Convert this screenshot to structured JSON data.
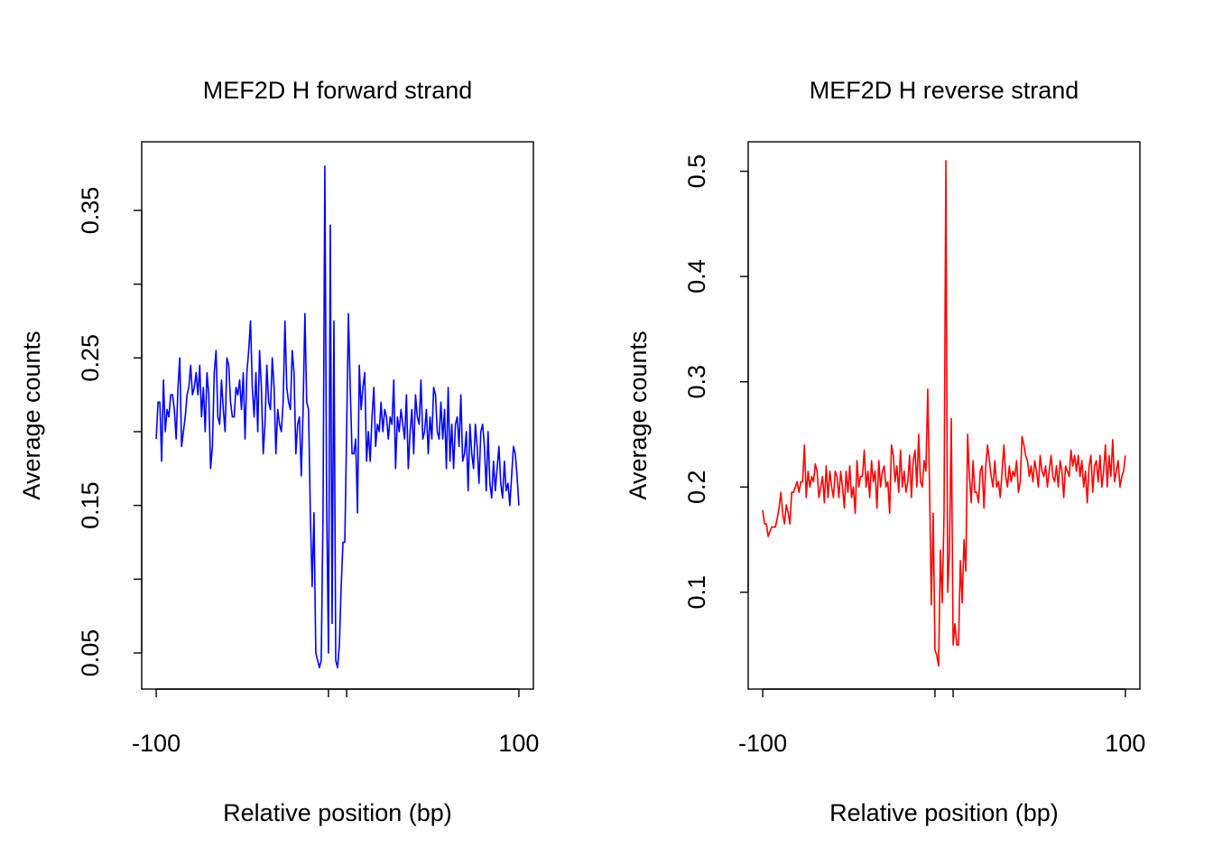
{
  "chart_data": [
    {
      "type": "line",
      "title": "MEF2D H forward strand",
      "xlabel": "Relative position (bp)",
      "ylabel": "Average counts",
      "color": "#0000ff",
      "x": [
        -100,
        -99,
        -98,
        -97,
        -96,
        -95,
        -94,
        -93,
        -92,
        -91,
        -90,
        -89,
        -88,
        -87,
        -86,
        -85,
        -84,
        -83,
        -82,
        -81,
        -80,
        -79,
        -78,
        -77,
        -76,
        -75,
        -74,
        -73,
        -72,
        -71,
        -70,
        -69,
        -68,
        -67,
        -66,
        -65,
        -64,
        -63,
        -62,
        -61,
        -60,
        -59,
        -58,
        -57,
        -56,
        -55,
        -54,
        -53,
        -52,
        -51,
        -50,
        -49,
        -48,
        -47,
        -46,
        -45,
        -44,
        -43,
        -42,
        -41,
        -40,
        -39,
        -38,
        -37,
        -36,
        -35,
        -34,
        -33,
        -32,
        -31,
        -30,
        -29,
        -28,
        -27,
        -26,
        -25,
        -24,
        -23,
        -22,
        -21,
        -20,
        -19,
        -18,
        -17,
        -16,
        -15,
        -14,
        -13,
        -12,
        -11,
        -10,
        -9,
        -8,
        -7,
        -6,
        -5,
        -4,
        -3,
        -2,
        -1,
        0,
        1,
        2,
        3,
        4,
        5,
        6,
        7,
        8,
        9,
        10,
        11,
        12,
        13,
        14,
        15,
        16,
        17,
        18,
        19,
        20,
        21,
        22,
        23,
        24,
        25,
        26,
        27,
        28,
        29,
        30,
        31,
        32,
        33,
        34,
        35,
        36,
        37,
        38,
        39,
        40,
        41,
        42,
        43,
        44,
        45,
        46,
        47,
        48,
        49,
        50,
        51,
        52,
        53,
        54,
        55,
        56,
        57,
        58,
        59,
        60,
        61,
        62,
        63,
        64,
        65,
        66,
        67,
        68,
        69,
        70,
        71,
        72,
        73,
        74,
        75,
        76,
        77,
        78,
        79,
        80,
        81,
        82,
        83,
        84,
        85,
        86,
        87,
        88,
        89,
        90,
        91,
        92,
        93,
        94,
        95,
        96,
        97,
        98,
        99,
        100
      ],
      "values": [
        0.195,
        0.22,
        0.22,
        0.18,
        0.235,
        0.2,
        0.215,
        0.21,
        0.225,
        0.225,
        0.215,
        0.195,
        0.23,
        0.25,
        0.19,
        0.2,
        0.21,
        0.225,
        0.23,
        0.245,
        0.225,
        0.23,
        0.24,
        0.225,
        0.245,
        0.21,
        0.23,
        0.2,
        0.24,
        0.225,
        0.175,
        0.19,
        0.24,
        0.255,
        0.21,
        0.205,
        0.235,
        0.215,
        0.2,
        0.25,
        0.245,
        0.22,
        0.21,
        0.21,
        0.23,
        0.225,
        0.235,
        0.215,
        0.24,
        0.195,
        0.24,
        0.255,
        0.275,
        0.23,
        0.21,
        0.24,
        0.2,
        0.255,
        0.23,
        0.185,
        0.205,
        0.245,
        0.22,
        0.215,
        0.25,
        0.23,
        0.185,
        0.215,
        0.205,
        0.2,
        0.22,
        0.275,
        0.23,
        0.22,
        0.215,
        0.255,
        0.24,
        0.185,
        0.205,
        0.21,
        0.17,
        0.215,
        0.28,
        0.22,
        0.215,
        0.145,
        0.095,
        0.145,
        0.05,
        0.045,
        0.04,
        0.045,
        0.145,
        0.38,
        0.15,
        0.05,
        0.34,
        0.07,
        0.275,
        0.045,
        0.04,
        0.055,
        0.095,
        0.125,
        0.125,
        0.2,
        0.28,
        0.23,
        0.185,
        0.185,
        0.195,
        0.145,
        0.245,
        0.215,
        0.23,
        0.24,
        0.18,
        0.2,
        0.18,
        0.21,
        0.23,
        0.19,
        0.205,
        0.2,
        0.22,
        0.2,
        0.215,
        0.21,
        0.195,
        0.21,
        0.205,
        0.235,
        0.175,
        0.21,
        0.2,
        0.215,
        0.205,
        0.195,
        0.225,
        0.175,
        0.2,
        0.215,
        0.185,
        0.225,
        0.21,
        0.205,
        0.235,
        0.195,
        0.2,
        0.215,
        0.185,
        0.21,
        0.195,
        0.23,
        0.225,
        0.2,
        0.195,
        0.22,
        0.195,
        0.215,
        0.175,
        0.23,
        0.18,
        0.205,
        0.175,
        0.205,
        0.21,
        0.19,
        0.225,
        0.18,
        0.185,
        0.2,
        0.16,
        0.205,
        0.185,
        0.175,
        0.205,
        0.19,
        0.165,
        0.2,
        0.205,
        0.19,
        0.16,
        0.2,
        0.165,
        0.155,
        0.18,
        0.16,
        0.175,
        0.19,
        0.165,
        0.155,
        0.18,
        0.16,
        0.165,
        0.15,
        0.17,
        0.19,
        0.185,
        0.17,
        0.15
      ],
      "xlim": [
        -108,
        108
      ],
      "xticks": [
        -100,
        {
          "value": -5,
          "label": null
        },
        {
          "value": 5,
          "label": null
        },
        100
      ],
      "ylim": [
        0.0255,
        0.3965
      ],
      "yticks": [
        0.05,
        {
          "value": 0.1,
          "label": null
        },
        0.15,
        {
          "value": 0.2,
          "label": null
        },
        0.25,
        {
          "value": 0.3,
          "label": null
        },
        0.35
      ]
    },
    {
      "type": "line",
      "title": "MEF2D H reverse strand",
      "xlabel": "Relative position (bp)",
      "ylabel": "Average counts",
      "color": "#ff0000",
      "x": [
        -100,
        -99,
        -98,
        -97,
        -96,
        -95,
        -94,
        -93,
        -92,
        -91,
        -90,
        -89,
        -88,
        -87,
        -86,
        -85,
        -84,
        -83,
        -82,
        -81,
        -80,
        -79,
        -78,
        -77,
        -76,
        -75,
        -74,
        -73,
        -72,
        -71,
        -70,
        -69,
        -68,
        -67,
        -66,
        -65,
        -64,
        -63,
        -62,
        -61,
        -60,
        -59,
        -58,
        -57,
        -56,
        -55,
        -54,
        -53,
        -52,
        -51,
        -50,
        -49,
        -48,
        -47,
        -46,
        -45,
        -44,
        -43,
        -42,
        -41,
        -40,
        -39,
        -38,
        -37,
        -36,
        -35,
        -34,
        -33,
        -32,
        -31,
        -30,
        -29,
        -28,
        -27,
        -26,
        -25,
        -24,
        -23,
        -22,
        -21,
        -20,
        -19,
        -18,
        -17,
        -16,
        -15,
        -14,
        -13,
        -12,
        -11,
        -10,
        -9,
        -8,
        -7,
        -6,
        -5,
        -4,
        -3,
        -2,
        -1,
        0,
        1,
        2,
        3,
        4,
        5,
        6,
        7,
        8,
        9,
        10,
        11,
        12,
        13,
        14,
        15,
        16,
        17,
        18,
        19,
        20,
        21,
        22,
        23,
        24,
        25,
        26,
        27,
        28,
        29,
        30,
        31,
        32,
        33,
        34,
        35,
        36,
        37,
        38,
        39,
        40,
        41,
        42,
        43,
        44,
        45,
        46,
        47,
        48,
        49,
        50,
        51,
        52,
        53,
        54,
        55,
        56,
        57,
        58,
        59,
        60,
        61,
        62,
        63,
        64,
        65,
        66,
        67,
        68,
        69,
        70,
        71,
        72,
        73,
        74,
        75,
        76,
        77,
        78,
        79,
        80,
        81,
        82,
        83,
        84,
        85,
        86,
        87,
        88,
        89,
        90,
        91,
        92,
        93,
        94,
        95,
        96,
        97,
        98,
        99,
        100
      ],
      "values": [
        0.178,
        0.165,
        0.165,
        0.153,
        0.158,
        0.162,
        0.162,
        0.162,
        0.17,
        0.18,
        0.195,
        0.175,
        0.165,
        0.183,
        0.176,
        0.165,
        0.195,
        0.195,
        0.2,
        0.205,
        0.195,
        0.205,
        0.205,
        0.24,
        0.19,
        0.215,
        0.2,
        0.21,
        0.205,
        0.222,
        0.215,
        0.19,
        0.2,
        0.21,
        0.185,
        0.22,
        0.19,
        0.215,
        0.2,
        0.19,
        0.215,
        0.21,
        0.19,
        0.215,
        0.2,
        0.18,
        0.215,
        0.195,
        0.22,
        0.19,
        0.2,
        0.175,
        0.225,
        0.2,
        0.21,
        0.21,
        0.235,
        0.2,
        0.215,
        0.19,
        0.225,
        0.205,
        0.215,
        0.18,
        0.225,
        0.2,
        0.215,
        0.22,
        0.2,
        0.205,
        0.175,
        0.24,
        0.23,
        0.205,
        0.22,
        0.195,
        0.235,
        0.2,
        0.215,
        0.195,
        0.205,
        0.23,
        0.19,
        0.225,
        0.235,
        0.2,
        0.25,
        0.205,
        0.2,
        0.225,
        0.215,
        0.293,
        0.2,
        0.088,
        0.175,
        0.045,
        0.04,
        0.03,
        0.14,
        0.09,
        0.175,
        0.51,
        0.1,
        0.14,
        0.265,
        0.05,
        0.07,
        0.05,
        0.05,
        0.13,
        0.09,
        0.15,
        0.12,
        0.25,
        0.21,
        0.185,
        0.225,
        0.195,
        0.195,
        0.185,
        0.215,
        0.22,
        0.18,
        0.22,
        0.24,
        0.225,
        0.21,
        0.2,
        0.225,
        0.2,
        0.205,
        0.19,
        0.215,
        0.24,
        0.21,
        0.2,
        0.22,
        0.205,
        0.215,
        0.21,
        0.225,
        0.195,
        0.205,
        0.248,
        0.24,
        0.23,
        0.225,
        0.21,
        0.22,
        0.205,
        0.225,
        0.215,
        0.2,
        0.23,
        0.215,
        0.21,
        0.22,
        0.2,
        0.215,
        0.23,
        0.21,
        0.205,
        0.22,
        0.2,
        0.225,
        0.215,
        0.19,
        0.22,
        0.215,
        0.21,
        0.235,
        0.22,
        0.23,
        0.215,
        0.23,
        0.21,
        0.225,
        0.2,
        0.215,
        0.185,
        0.22,
        0.23,
        0.195,
        0.22,
        0.225,
        0.205,
        0.23,
        0.2,
        0.215,
        0.24,
        0.2,
        0.23,
        0.21,
        0.245,
        0.205,
        0.215,
        0.225,
        0.2,
        0.21,
        0.215,
        0.23
      ],
      "xlim": [
        -108,
        108
      ],
      "xticks": [
        -100,
        {
          "value": -5,
          "label": null
        },
        {
          "value": 5,
          "label": null
        },
        100
      ],
      "ylim": [
        0.008,
        0.528
      ],
      "yticks": [
        0.1,
        0.2,
        0.3,
        0.4,
        0.5
      ]
    }
  ]
}
